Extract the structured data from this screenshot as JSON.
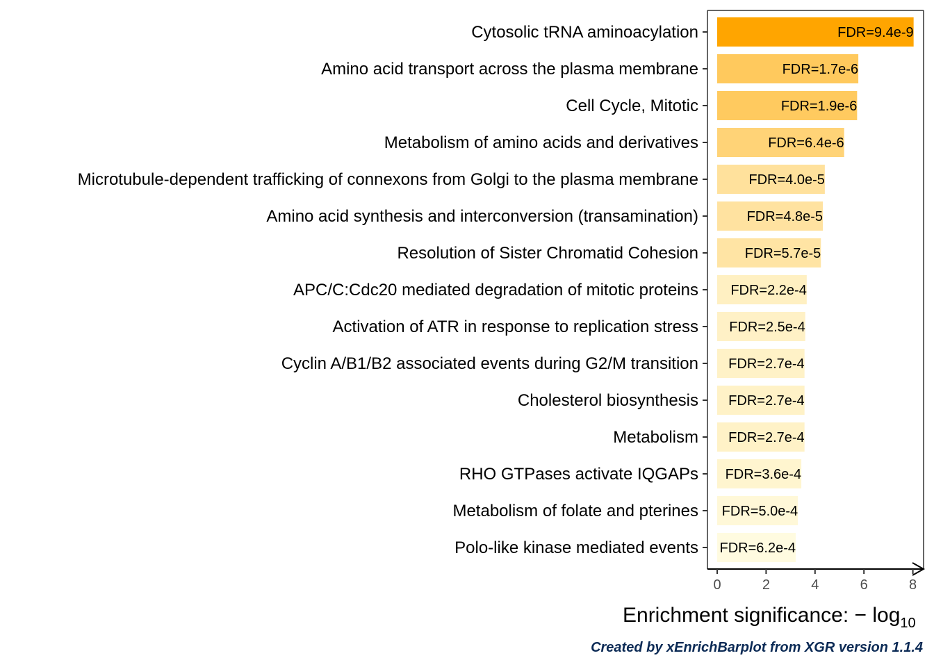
{
  "chart_data": {
    "type": "bar",
    "orientation": "horizontal",
    "categories": [
      "Cytosolic tRNA aminoacylation",
      "Amino acid transport across the plasma membrane",
      "Cell Cycle, Mitotic",
      "Metabolism of amino acids and derivatives",
      "Microtubule-dependent trafficking of connexons from Golgi to the plasma membrane",
      "Amino acid synthesis and interconversion (transamination)",
      "Resolution of Sister Chromatid Cohesion",
      "APC/C:Cdc20 mediated degradation of mitotic proteins",
      "Activation of ATR in response to replication stress",
      "Cyclin A/B1/B2 associated events during G2/M transition",
      "Cholesterol biosynthesis",
      "Metabolism",
      "RHO GTPases activate IQGAPs",
      "Metabolism of folate and pterines",
      "Polo-like kinase mediated events"
    ],
    "values": [
      8.03,
      5.77,
      5.72,
      5.19,
      4.4,
      4.32,
      4.24,
      3.66,
      3.6,
      3.57,
      3.57,
      3.57,
      3.44,
      3.3,
      3.21
    ],
    "bar_labels": [
      "FDR=9.4e-9",
      "FDR=1.7e-6",
      "FDR=1.9e-6",
      "FDR=6.4e-6",
      "FDR=4.0e-5",
      "FDR=4.8e-5",
      "FDR=5.7e-5",
      "FDR=2.2e-4",
      "FDR=2.5e-4",
      "FDR=2.7e-4",
      "FDR=2.7e-4",
      "FDR=2.7e-4",
      "FDR=3.6e-4",
      "FDR=5.0e-4",
      "FDR=6.2e-4"
    ],
    "xticks": [
      "0",
      "2",
      "4",
      "6",
      "8"
    ],
    "xlim": [
      -0.4,
      8.4
    ],
    "xlabel": "Enrichment significance: − log",
    "xlabel_subscript": "10",
    "title": "",
    "color_low": "#fffbe0",
    "color_high": "#ffa500",
    "grid": false
  },
  "caption": "Created by xEnrichBarplot from XGR version 1.1.4"
}
